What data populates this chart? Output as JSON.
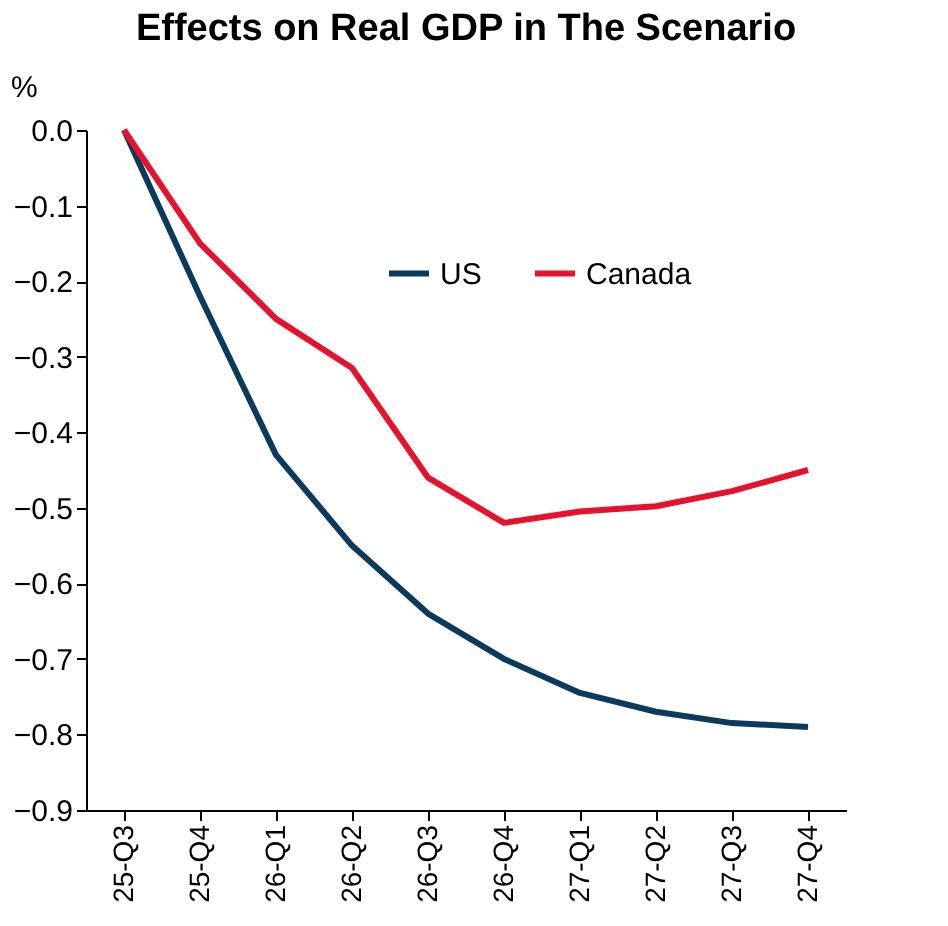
{
  "chart_data": {
    "type": "line",
    "title": "Effects on Real GDP in The Scenario",
    "ylabel": "%",
    "categories": [
      "25-Q3",
      "25-Q4",
      "26-Q1",
      "26-Q2",
      "26-Q3",
      "26-Q4",
      "27-Q1",
      "27-Q2",
      "27-Q3",
      "27-Q4"
    ],
    "series": [
      {
        "name": "US",
        "color": "#0b3a5e",
        "values": [
          0,
          -0.22,
          -0.43,
          -0.55,
          -0.64,
          -0.7,
          -0.745,
          -0.77,
          -0.785,
          -0.79
        ]
      },
      {
        "name": "Canada",
        "color": "#e8112d",
        "values": [
          0,
          -0.15,
          -0.25,
          -0.315,
          -0.46,
          -0.52,
          -0.505,
          -0.498,
          -0.478,
          -0.45
        ]
      }
    ],
    "ylim": [
      -0.9,
      0
    ],
    "yticks": [
      {
        "value": 0,
        "label": "0.0"
      },
      -0.1,
      -0.2,
      -0.3,
      -0.4,
      -0.5,
      -0.6,
      -0.7,
      -0.8,
      -0.9
    ],
    "grid": false,
    "legend": "top right",
    "marker": "none",
    "line_style": "solid"
  }
}
